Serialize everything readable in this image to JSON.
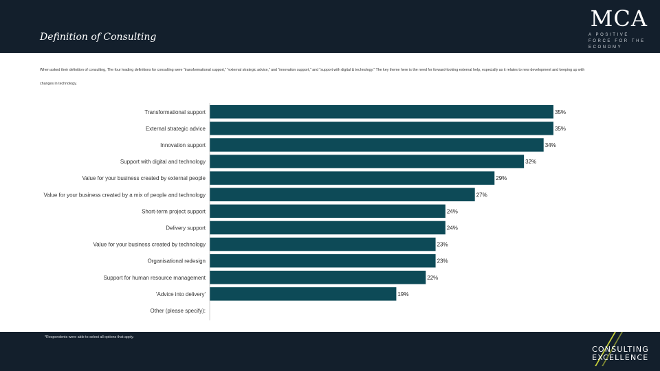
{
  "header": {
    "title": "Definition of Consulting",
    "logo_text": "MCA",
    "logo_tagline": "A POSITIVE FORCE FOR THE ECONOMY"
  },
  "intro_text": "When asked their definition of consulting, The four leading definitions for consulting were “transformational support,” “external strategic advice,” and “innovation support,” and “support with digital & technology.” The key theme here is the need for forward-looking external help, especially as it relates to new development and keeping up with changes in technology.",
  "footer": {
    "footnote": "*Respondents were able to select all options that apply.",
    "brand_line1": "CONSULTING",
    "brand_line2": "EXCELLENCE"
  },
  "colors": {
    "bar": "#0d4a57",
    "header": "#131f2c",
    "accent": "#c9d23a"
  },
  "chart_data": {
    "type": "bar",
    "orientation": "horizontal",
    "categories": [
      "Transformational support",
      "External strategic advice",
      "Innovation support",
      "Support with digital and technology",
      "Value for your business created by external people",
      "Value for your business created by a mix of people and technology",
      "Short-term project support",
      "Delivery support",
      "Value for your business created by technology",
      "Organisational redesign",
      "Support for human resource management",
      "'Advice into delivery'",
      "Other (please specify):"
    ],
    "values": [
      35,
      35,
      34,
      32,
      29,
      27,
      24,
      24,
      23,
      23,
      22,
      19,
      null
    ],
    "value_labels": [
      "35%",
      "35%",
      "34%",
      "32%",
      "29%",
      "27%",
      "24%",
      "24%",
      "23%",
      "23%",
      "22%",
      "19%",
      ""
    ],
    "xlim": [
      0,
      35
    ]
  }
}
